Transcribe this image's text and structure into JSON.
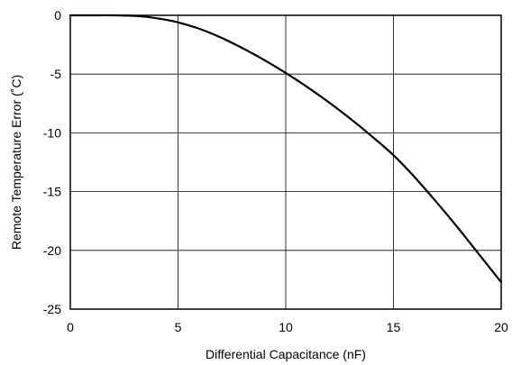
{
  "chart_data": {
    "type": "line",
    "title": "",
    "xlabel": "Differential Capacitance (nF)",
    "ylabel": "Remote Temperature Error (˚C)",
    "xlim": [
      0,
      20
    ],
    "ylim": [
      -25,
      0
    ],
    "xticks": [
      0,
      5,
      10,
      15,
      20
    ],
    "yticks": [
      0,
      -5,
      -10,
      -15,
      -20,
      -25
    ],
    "x_tick_labels": [
      "0",
      "5",
      "10",
      "15",
      "20"
    ],
    "y_tick_labels": [
      "0",
      "-5",
      "-10",
      "-15",
      "-20",
      "-25"
    ],
    "grid": true,
    "legend": "none",
    "series": [
      {
        "color": "#000000",
        "x": [
          0,
          1,
          2,
          3,
          3.5,
          4,
          4.5,
          5,
          6,
          7,
          8,
          9,
          10,
          11,
          12,
          13,
          14,
          15,
          16,
          17,
          18,
          19,
          20
        ],
        "y": [
          0,
          0,
          0,
          -0.05,
          -0.12,
          -0.25,
          -0.4,
          -0.6,
          -1.15,
          -1.9,
          -2.8,
          -3.8,
          -4.9,
          -6.1,
          -7.4,
          -8.8,
          -10.3,
          -11.9,
          -13.8,
          -15.9,
          -18.1,
          -20.4,
          -22.7
        ]
      }
    ]
  }
}
